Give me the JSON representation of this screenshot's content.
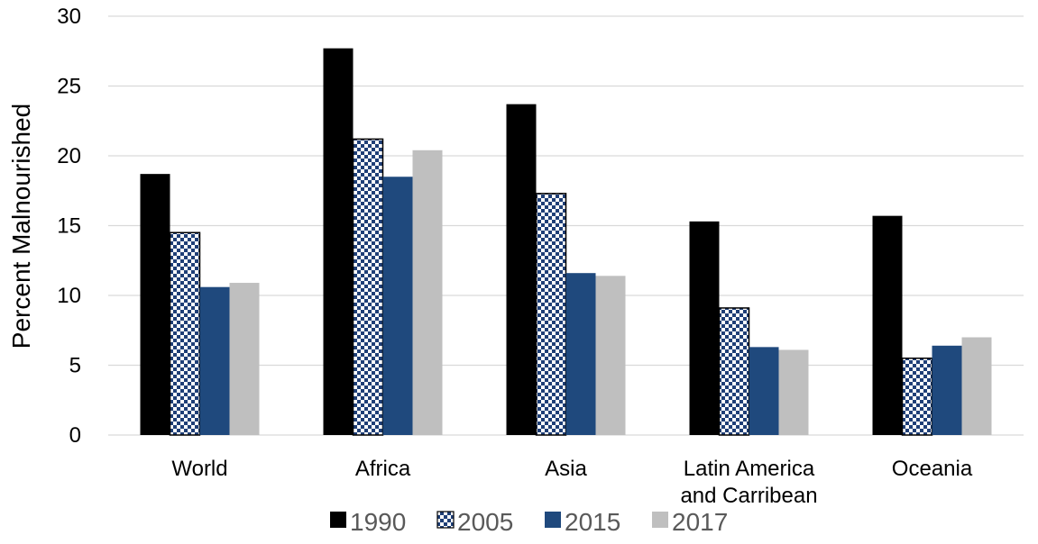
{
  "chart_data": {
    "type": "bar",
    "categories": [
      [
        "World"
      ],
      [
        "Africa"
      ],
      [
        "Asia"
      ],
      [
        "Latin America",
        "and Carribean"
      ],
      [
        "Oceania"
      ]
    ],
    "series": [
      {
        "name": "1990",
        "values": [
          18.7,
          27.7,
          23.7,
          15.3,
          15.7
        ],
        "color": "#000000",
        "pattern": "solid"
      },
      {
        "name": "2005",
        "values": [
          14.5,
          21.2,
          17.3,
          9.1,
          5.5
        ],
        "color": "#1f3f77",
        "pattern": "checker"
      },
      {
        "name": "2015",
        "values": [
          10.6,
          18.5,
          11.6,
          6.3,
          6.4
        ],
        "color": "#1f497d",
        "pattern": "solid"
      },
      {
        "name": "2017",
        "values": [
          10.9,
          20.4,
          11.4,
          6.1,
          7.0
        ],
        "color": "#bfbfbf",
        "pattern": "solid"
      }
    ],
    "title": "",
    "xlabel": "",
    "ylabel": "Percent Malnourished",
    "ylim": [
      0,
      30
    ],
    "yticks": [
      "0",
      "5",
      "10",
      "15",
      "20",
      "25",
      "30"
    ],
    "grid": true,
    "legend_position": "bottom"
  }
}
